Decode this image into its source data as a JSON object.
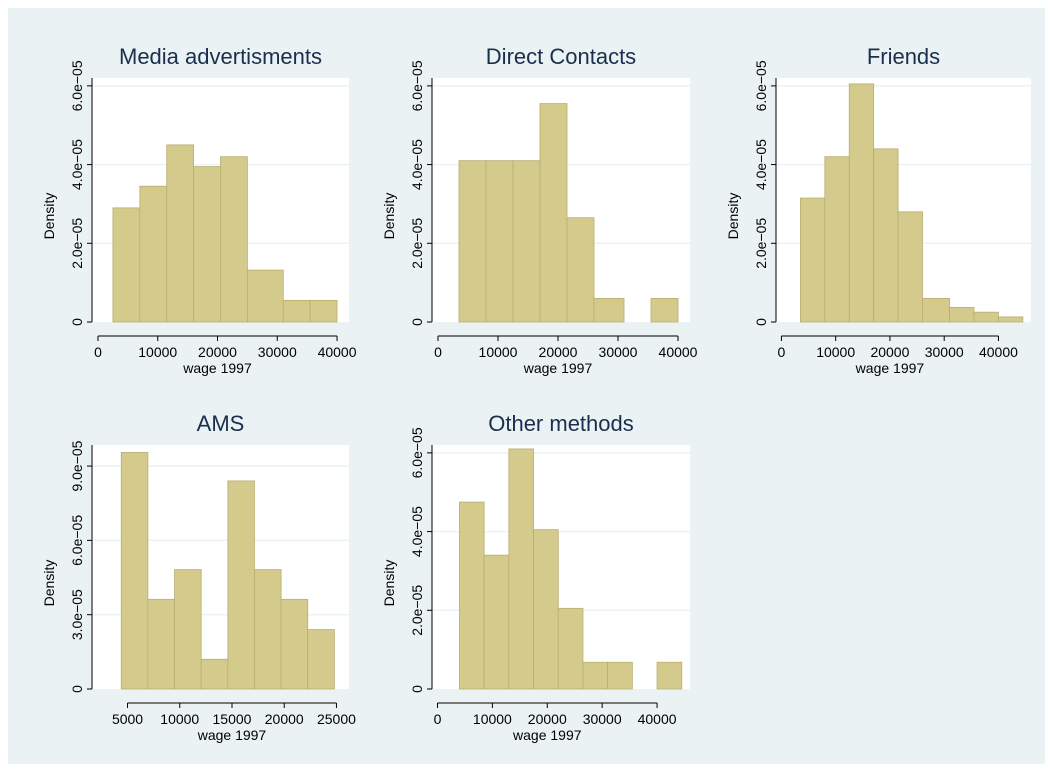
{
  "colors": {
    "background": "#eaf2f3",
    "plot_background": "#ffffff",
    "bar_fill": "#d4ca8c",
    "bar_edge": "#b8ae70",
    "grid": "#eaf2f3",
    "title": "#1a2e4d",
    "axis": "#000000"
  },
  "chart_data": [
    {
      "type": "bar",
      "title": "Media advertisments",
      "xlabel": "wage 1997",
      "ylabel": "Density",
      "xlim": [
        -1000,
        42000
      ],
      "ylim": [
        0,
        6.2e-05
      ],
      "xticks": [
        0,
        10000,
        20000,
        30000,
        40000
      ],
      "xtick_labels": [
        "0",
        "10000",
        "20000",
        "30000",
        "40000"
      ],
      "yticks": [
        0,
        2e-05,
        4e-05,
        6e-05
      ],
      "ytick_labels": [
        "0",
        "2.0e−05",
        "4.0e−05",
        "6.0e−05"
      ],
      "grid": true,
      "bins": [
        {
          "x0": 2500,
          "x1": 7000,
          "y": 2.9e-05
        },
        {
          "x0": 7000,
          "x1": 11500,
          "y": 3.45e-05
        },
        {
          "x0": 11500,
          "x1": 16000,
          "y": 4.5e-05
        },
        {
          "x0": 16000,
          "x1": 20500,
          "y": 3.95e-05
        },
        {
          "x0": 20500,
          "x1": 25000,
          "y": 4.2e-05
        },
        {
          "x0": 25000,
          "x1": 31000,
          "y": 1.32e-05
        },
        {
          "x0": 31000,
          "x1": 35500,
          "y": 5.5e-06
        },
        {
          "x0": 35500,
          "x1": 40000,
          "y": 5.5e-06
        }
      ]
    },
    {
      "type": "bar",
      "title": "Direct Contacts",
      "xlabel": "wage 1997",
      "ylabel": "Density",
      "xlim": [
        -1000,
        42000
      ],
      "ylim": [
        0,
        6.2e-05
      ],
      "xticks": [
        0,
        10000,
        20000,
        30000,
        40000
      ],
      "xtick_labels": [
        "0",
        "10000",
        "20000",
        "30000",
        "40000"
      ],
      "yticks": [
        0,
        2e-05,
        4e-05,
        6e-05
      ],
      "ytick_labels": [
        "0",
        "2.0e−05",
        "4.0e−05",
        "6.0e−05"
      ],
      "grid": true,
      "bins": [
        {
          "x0": 3500,
          "x1": 8000,
          "y": 4.1e-05
        },
        {
          "x0": 8000,
          "x1": 12500,
          "y": 4.1e-05
        },
        {
          "x0": 12500,
          "x1": 17000,
          "y": 4.1e-05
        },
        {
          "x0": 17000,
          "x1": 21500,
          "y": 5.55e-05
        },
        {
          "x0": 21500,
          "x1": 26000,
          "y": 2.65e-05
        },
        {
          "x0": 26000,
          "x1": 31000,
          "y": 6e-06
        },
        {
          "x0": 31000,
          "x1": 35500,
          "y": 0
        },
        {
          "x0": 35500,
          "x1": 40000,
          "y": 6e-06
        }
      ]
    },
    {
      "type": "bar",
      "title": "Friends",
      "xlabel": "wage 1997",
      "ylabel": "Density",
      "xlim": [
        -1000,
        46000
      ],
      "ylim": [
        0,
        6.2e-05
      ],
      "xticks": [
        0,
        10000,
        20000,
        30000,
        40000
      ],
      "xtick_labels": [
        "0",
        "10000",
        "20000",
        "30000",
        "40000"
      ],
      "yticks": [
        0,
        2e-05,
        4e-05,
        6e-05
      ],
      "ytick_labels": [
        "0",
        "2.0e−05",
        "4.0e−05",
        "6.0e−05"
      ],
      "grid": true,
      "bins": [
        {
          "x0": 3500,
          "x1": 8000,
          "y": 3.15e-05
        },
        {
          "x0": 8000,
          "x1": 12500,
          "y": 4.2e-05
        },
        {
          "x0": 12500,
          "x1": 17000,
          "y": 6.05e-05
        },
        {
          "x0": 17000,
          "x1": 21500,
          "y": 4.4e-05
        },
        {
          "x0": 21500,
          "x1": 26000,
          "y": 2.8e-05
        },
        {
          "x0": 26000,
          "x1": 31000,
          "y": 6e-06
        },
        {
          "x0": 31000,
          "x1": 35500,
          "y": 3.7e-06
        },
        {
          "x0": 35500,
          "x1": 40000,
          "y": 2.5e-06
        },
        {
          "x0": 40000,
          "x1": 44500,
          "y": 1.3e-06
        }
      ]
    },
    {
      "type": "bar",
      "title": "AMS",
      "xlabel": "wage 1997",
      "ylabel": "Density",
      "xlim": [
        1600,
        26200
      ],
      "ylim": [
        0,
        9.85e-05
      ],
      "xticks": [
        5000,
        10000,
        15000,
        20000,
        25000
      ],
      "xtick_labels": [
        "5000",
        "10000",
        "15000",
        "20000",
        "25000"
      ],
      "yticks": [
        0,
        3e-05,
        6e-05,
        9e-05
      ],
      "ytick_labels": [
        "0",
        "3.0e−05",
        "6.0e−05",
        "9.0e−05"
      ],
      "grid": true,
      "bins": [
        {
          "x0": 4400,
          "x1": 6950,
          "y": 9.55e-05
        },
        {
          "x0": 6950,
          "x1": 9500,
          "y": 3.62e-05
        },
        {
          "x0": 9500,
          "x1": 12050,
          "y": 4.82e-05
        },
        {
          "x0": 12050,
          "x1": 14600,
          "y": 1.2e-05
        },
        {
          "x0": 14600,
          "x1": 17150,
          "y": 8.4e-05
        },
        {
          "x0": 17150,
          "x1": 19700,
          "y": 4.82e-05
        },
        {
          "x0": 19700,
          "x1": 22250,
          "y": 3.62e-05
        },
        {
          "x0": 22250,
          "x1": 24800,
          "y": 2.4e-05
        }
      ]
    },
    {
      "type": "bar",
      "title": "Other methods",
      "xlabel": "wage 1997",
      "ylabel": "Density",
      "xlim": [
        -1000,
        46000
      ],
      "ylim": [
        0,
        6.2e-05
      ],
      "xticks": [
        0,
        10000,
        20000,
        30000,
        40000
      ],
      "xtick_labels": [
        "0",
        "10000",
        "20000",
        "30000",
        "40000"
      ],
      "yticks": [
        0,
        2e-05,
        4e-05,
        6e-05
      ],
      "ytick_labels": [
        "0",
        "2.0e−05",
        "4.0e−05",
        "6.0e−05"
      ],
      "grid": true,
      "bins": [
        {
          "x0": 4000,
          "x1": 8500,
          "y": 4.75e-05
        },
        {
          "x0": 8500,
          "x1": 13000,
          "y": 3.4e-05
        },
        {
          "x0": 13000,
          "x1": 17500,
          "y": 6.1e-05
        },
        {
          "x0": 17500,
          "x1": 22000,
          "y": 4.05e-05
        },
        {
          "x0": 22000,
          "x1": 26500,
          "y": 2.05e-05
        },
        {
          "x0": 26500,
          "x1": 31000,
          "y": 6.8e-06
        },
        {
          "x0": 31000,
          "x1": 35500,
          "y": 6.8e-06
        },
        {
          "x0": 35500,
          "x1": 40000,
          "y": 0
        },
        {
          "x0": 40000,
          "x1": 44500,
          "y": 6.8e-06
        }
      ]
    }
  ]
}
